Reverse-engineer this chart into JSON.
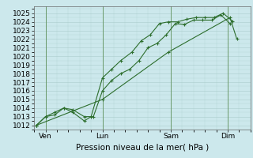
{
  "xlabel": "Pression niveau de la mer( hPa )",
  "background_color": "#cce8ec",
  "grid_color": "#aacccc",
  "line_color": "#2d6e2d",
  "ylim": [
    1011.5,
    1025.8
  ],
  "yticks": [
    1012,
    1013,
    1014,
    1015,
    1016,
    1017,
    1018,
    1019,
    1020,
    1021,
    1022,
    1023,
    1024,
    1025
  ],
  "xtick_labels": [
    "Ven",
    "Lun",
    "Sam",
    "Dim"
  ],
  "xtick_positions": [
    0.5,
    3.0,
    6.0,
    8.5
  ],
  "xlim": [
    0.0,
    9.5
  ],
  "lines": [
    {
      "x": [
        0.1,
        0.5,
        0.9,
        1.3,
        1.7,
        2.2,
        2.6,
        3.0,
        3.4,
        3.8,
        4.2,
        4.6,
        5.0,
        5.4,
        5.8,
        6.2,
        6.6,
        7.0,
        7.4,
        7.8,
        8.2,
        8.6
      ],
      "y": [
        1012,
        1013,
        1013.2,
        1014,
        1013.8,
        1013,
        1013,
        1016,
        1017.2,
        1018,
        1018.5,
        1019.5,
        1021,
        1021.5,
        1022.5,
        1023.8,
        1023.7,
        1024.2,
        1024.2,
        1024.2,
        1024.8,
        1023.8
      ],
      "marker": "+"
    },
    {
      "x": [
        0.1,
        0.5,
        0.9,
        1.3,
        1.7,
        2.2,
        2.5,
        3.0,
        3.4,
        3.8,
        4.3,
        4.7,
        5.1,
        5.5,
        5.9,
        6.3,
        6.7,
        7.1,
        7.5,
        7.9,
        8.3,
        8.7
      ],
      "y": [
        1012,
        1013,
        1013.5,
        1014,
        1013.5,
        1012.5,
        1013,
        1017.5,
        1018.5,
        1019.5,
        1020.5,
        1021.8,
        1022.5,
        1023.8,
        1024.0,
        1024.0,
        1024.3,
        1024.5,
        1024.5,
        1024.5,
        1025.0,
        1024.1
      ],
      "marker": "+"
    },
    {
      "x": [
        0.1,
        3.0,
        5.9,
        8.6,
        8.9
      ],
      "y": [
        1012,
        1015.0,
        1020.5,
        1024.5,
        1022.0
      ],
      "marker": "+"
    }
  ],
  "font_size": 7.5,
  "tick_fontsize": 6.5
}
